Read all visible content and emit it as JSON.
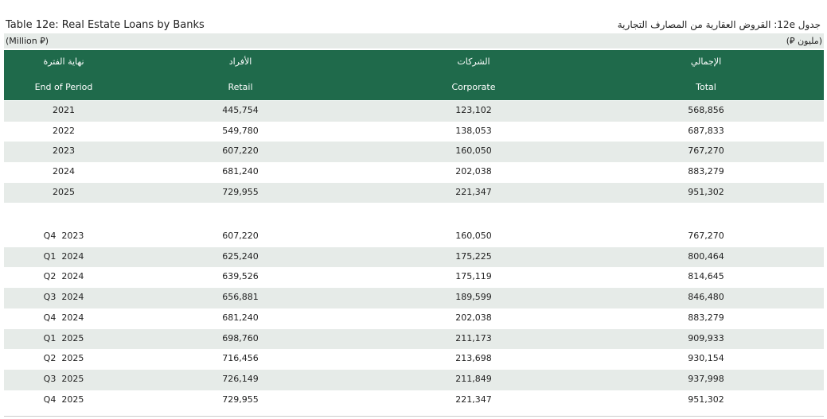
{
  "header": {
    "title": "Table 12e: Real Estate Loans by Banks",
    "title_ar": "جدول 12e: القروض العقارية من المصارف التجارية",
    "unit": "(Million ⃁)",
    "unit_ar": "(مليون ⃁)"
  },
  "table": {
    "columns": [
      {
        "ar": "نهاية الفترة",
        "en": "End of Period"
      },
      {
        "ar": "الأفراد",
        "en": "Retail"
      },
      {
        "ar": "الشركات",
        "en": "Corporate"
      },
      {
        "ar": "الإجمالي",
        "en": "Total"
      }
    ],
    "annual_rows": [
      [
        "2021",
        "445,754",
        "123,102",
        "568,856"
      ],
      [
        "2022",
        "549,780",
        "138,053",
        "687,833"
      ],
      [
        "2023",
        "607,220",
        "160,050",
        "767,270"
      ],
      [
        "2024",
        "681,240",
        "202,038",
        "883,279"
      ],
      [
        "2025",
        "729,955",
        "221,347",
        "951,302"
      ]
    ],
    "quarterly_rows": [
      [
        "Q4  2023",
        "607,220",
        "160,050",
        "767,270"
      ],
      [
        "Q1  2024",
        "625,240",
        "175,225",
        "800,464"
      ],
      [
        "Q2  2024",
        "639,526",
        "175,119",
        "814,645"
      ],
      [
        "Q3  2024",
        "656,881",
        "189,599",
        "846,480"
      ],
      [
        "Q4  2024",
        "681,240",
        "202,038",
        "883,279"
      ],
      [
        "Q1  2025",
        "698,760",
        "211,173",
        "909,933"
      ],
      [
        "Q2  2025",
        "716,456",
        "213,698",
        "930,154"
      ],
      [
        "Q3  2025",
        "726,149",
        "211,849",
        "937,998"
      ],
      [
        "Q4  2025",
        "729,955",
        "221,347",
        "951,302"
      ]
    ]
  }
}
